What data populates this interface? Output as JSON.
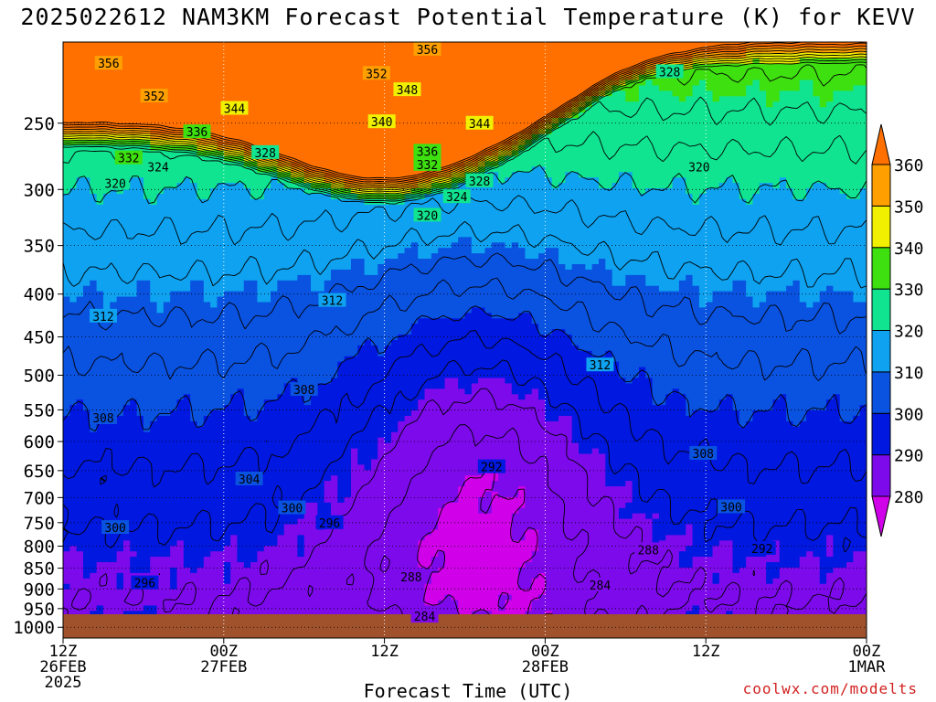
{
  "title": "2025022612 NAM3KM Forecast Potential Temperature (K) for KEVV",
  "credit": "coolwx.com/modelts",
  "chart_data": {
    "type": "heatmap",
    "title": "2025022612 NAM3KM Forecast Potential Temperature (K) for KEVV",
    "xlabel": "Forecast Time (UTC)",
    "ylabel": "",
    "x_ticks": [
      {
        "hour": 0,
        "line1": "12Z",
        "line2": "26FEB",
        "line3": "2025"
      },
      {
        "hour": 12,
        "line1": "00Z",
        "line2": "27FEB",
        "line3": ""
      },
      {
        "hour": 24,
        "line1": "12Z",
        "line2": "",
        "line3": ""
      },
      {
        "hour": 36,
        "line1": "00Z",
        "line2": "28FEB",
        "line3": ""
      },
      {
        "hour": 48,
        "line1": "12Z",
        "line2": "",
        "line3": ""
      },
      {
        "hour": 60,
        "line1": "00Z",
        "line2": "1MAR",
        "line3": ""
      }
    ],
    "xlim": [
      0,
      60
    ],
    "y_ticks": [
      250,
      300,
      350,
      400,
      450,
      500,
      550,
      600,
      650,
      700,
      750,
      800,
      850,
      900,
      950,
      1000
    ],
    "ylim_hPa": [
      200,
      1030
    ],
    "y_scale": "log",
    "colorbar": {
      "levels": [
        280,
        290,
        300,
        310,
        320,
        330,
        340,
        350,
        360
      ],
      "colors": [
        "#d000e8",
        "#7d0aeb",
        "#0018e0",
        "#0a52e0",
        "#0ea2f0",
        "#10e490",
        "#3ee010",
        "#f0f000",
        "#ffa000",
        "#ff7000"
      ],
      "extend": "both"
    },
    "contour_labels": [
      {
        "v": 356,
        "t": 3.4,
        "p": 212
      },
      {
        "v": 356,
        "t": 27.2,
        "p": 204
      },
      {
        "v": 352,
        "t": 6.8,
        "p": 232
      },
      {
        "v": 352,
        "t": 23.4,
        "p": 218
      },
      {
        "v": 348,
        "t": 25.7,
        "p": 228
      },
      {
        "v": 344,
        "t": 12.8,
        "p": 240
      },
      {
        "v": 344,
        "t": 31.1,
        "p": 250
      },
      {
        "v": 340,
        "t": 23.8,
        "p": 249
      },
      {
        "v": 336,
        "t": 10.0,
        "p": 256
      },
      {
        "v": 336,
        "t": 27.2,
        "p": 270
      },
      {
        "v": 332,
        "t": 4.9,
        "p": 275
      },
      {
        "v": 332,
        "t": 27.2,
        "p": 280
      },
      {
        "v": 328,
        "t": 15.1,
        "p": 271
      },
      {
        "v": 328,
        "t": 31.1,
        "p": 293
      },
      {
        "v": 328,
        "t": 45.3,
        "p": 217
      },
      {
        "v": 324,
        "t": 7.1,
        "p": 282
      },
      {
        "v": 324,
        "t": 29.4,
        "p": 306
      },
      {
        "v": 320,
        "t": 3.9,
        "p": 295
      },
      {
        "v": 320,
        "t": 27.2,
        "p": 322
      },
      {
        "v": 320,
        "t": 47.5,
        "p": 282
      },
      {
        "v": 312,
        "t": 3.0,
        "p": 425
      },
      {
        "v": 312,
        "t": 20.1,
        "p": 407
      },
      {
        "v": 312,
        "t": 40.1,
        "p": 486
      },
      {
        "v": 308,
        "t": 3.0,
        "p": 562
      },
      {
        "v": 308,
        "t": 18.0,
        "p": 520
      },
      {
        "v": 308,
        "t": 47.8,
        "p": 620
      },
      {
        "v": 304,
        "t": 13.9,
        "p": 665
      },
      {
        "v": 300,
        "t": 3.9,
        "p": 760
      },
      {
        "v": 300,
        "t": 17.1,
        "p": 720
      },
      {
        "v": 300,
        "t": 49.9,
        "p": 718
      },
      {
        "v": 296,
        "t": 6.1,
        "p": 885
      },
      {
        "v": 296,
        "t": 19.9,
        "p": 750
      },
      {
        "v": 292,
        "t": 32.0,
        "p": 643
      },
      {
        "v": 292,
        "t": 52.2,
        "p": 805
      },
      {
        "v": 288,
        "t": 26.0,
        "p": 870
      },
      {
        "v": 288,
        "t": 43.7,
        "p": 808
      },
      {
        "v": 284,
        "t": 27.0,
        "p": 970
      },
      {
        "v": 284,
        "t": 40.1,
        "p": 890
      }
    ]
  }
}
